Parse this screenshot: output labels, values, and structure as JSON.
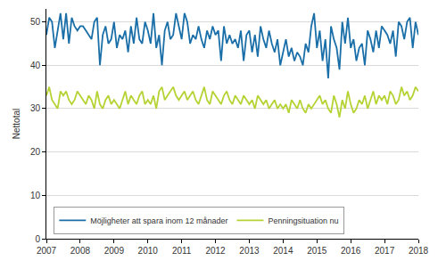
{
  "chart_data": {
    "type": "line",
    "y_label": "Nettotal",
    "categories": [
      "2007",
      null,
      null,
      null,
      null,
      null,
      null,
      null,
      null,
      null,
      null,
      null,
      "2008",
      null,
      null,
      null,
      null,
      null,
      null,
      null,
      null,
      null,
      null,
      null,
      "2009",
      null,
      null,
      null,
      null,
      null,
      null,
      null,
      null,
      null,
      null,
      null,
      "2010",
      null,
      null,
      null,
      null,
      null,
      null,
      null,
      null,
      null,
      null,
      null,
      "2011",
      null,
      null,
      null,
      null,
      null,
      null,
      null,
      null,
      null,
      null,
      null,
      "2012",
      null,
      null,
      null,
      null,
      null,
      null,
      null,
      null,
      null,
      null,
      null,
      "2013",
      null,
      null,
      null,
      null,
      null,
      null,
      null,
      null,
      null,
      null,
      null,
      "2014",
      null,
      null,
      null,
      null,
      null,
      null,
      null,
      null,
      null,
      null,
      null,
      "2015",
      null,
      null,
      null,
      null,
      null,
      null,
      null,
      null,
      null,
      null,
      null,
      "2016",
      null,
      null,
      null,
      null,
      null,
      null,
      null,
      null,
      null,
      null,
      null,
      "2017",
      null,
      null,
      null,
      null,
      null,
      null,
      null,
      null,
      null,
      null,
      null,
      "2018"
    ],
    "series": [
      {
        "name": "Möjligheter att spara inom 12 månader",
        "color": "#1a6fa8",
        "values": [
          47,
          51,
          50,
          44,
          48,
          52,
          46,
          52,
          45,
          51,
          49,
          48,
          49,
          49,
          48,
          47,
          46,
          50,
          51,
          40,
          47,
          49,
          45,
          46,
          50,
          44,
          47,
          46,
          48,
          43,
          49,
          45,
          51,
          46,
          45,
          50,
          48,
          45,
          52,
          44,
          47,
          40,
          48,
          50,
          46,
          47,
          52,
          49,
          46,
          52,
          50,
          45,
          47,
          46,
          49,
          46,
          44,
          48,
          46,
          49,
          47,
          48,
          41,
          49,
          45,
          47,
          45,
          46,
          44,
          48,
          41,
          47,
          48,
          43,
          47,
          42,
          49,
          46,
          44,
          48,
          45,
          43,
          46,
          40,
          43,
          46,
          42,
          44,
          41,
          43,
          42,
          40,
          45,
          43,
          49,
          52,
          44,
          48,
          41,
          46,
          37,
          49,
          46,
          44,
          39,
          50,
          45,
          51,
          44,
          46,
          41,
          44,
          45,
          40,
          48,
          46,
          43,
          48,
          44,
          49,
          48,
          47,
          45,
          48,
          42,
          50,
          49,
          46,
          50,
          51,
          44,
          50,
          47
        ]
      },
      {
        "name": "Penningsituation nu",
        "color": "#b5d334",
        "values": [
          33,
          35,
          32,
          31,
          30,
          34,
          33,
          34,
          32,
          31,
          32,
          34,
          33,
          32,
          31,
          33,
          32,
          30,
          34,
          31,
          30,
          32,
          33,
          31,
          32,
          31,
          30,
          32,
          34,
          31,
          33,
          32,
          31,
          33,
          34,
          31,
          32,
          31,
          33,
          30,
          34,
          35,
          32,
          33,
          34,
          35,
          33,
          32,
          33,
          34,
          32,
          33,
          34,
          32,
          31,
          33,
          35,
          32,
          31,
          34,
          33,
          32,
          31,
          33,
          34,
          32,
          31,
          33,
          32,
          31,
          33,
          32,
          31,
          32,
          30,
          33,
          32,
          31,
          32,
          30,
          31,
          32,
          30,
          31,
          30,
          31,
          29,
          32,
          31,
          30,
          32,
          30,
          29,
          31,
          30,
          31,
          32,
          33,
          31,
          32,
          30,
          29,
          33,
          31,
          28,
          32,
          30,
          34,
          31,
          29,
          30,
          32,
          31,
          33,
          30,
          32,
          34,
          31,
          33,
          32,
          33,
          31,
          34,
          33,
          31,
          32,
          35,
          33,
          34,
          32,
          33,
          35,
          34
        ]
      }
    ],
    "ylim": [
      0,
      53
    ],
    "yticks": [
      0,
      10,
      20,
      30,
      40,
      50
    ],
    "grid": true,
    "legend": "lower left"
  }
}
